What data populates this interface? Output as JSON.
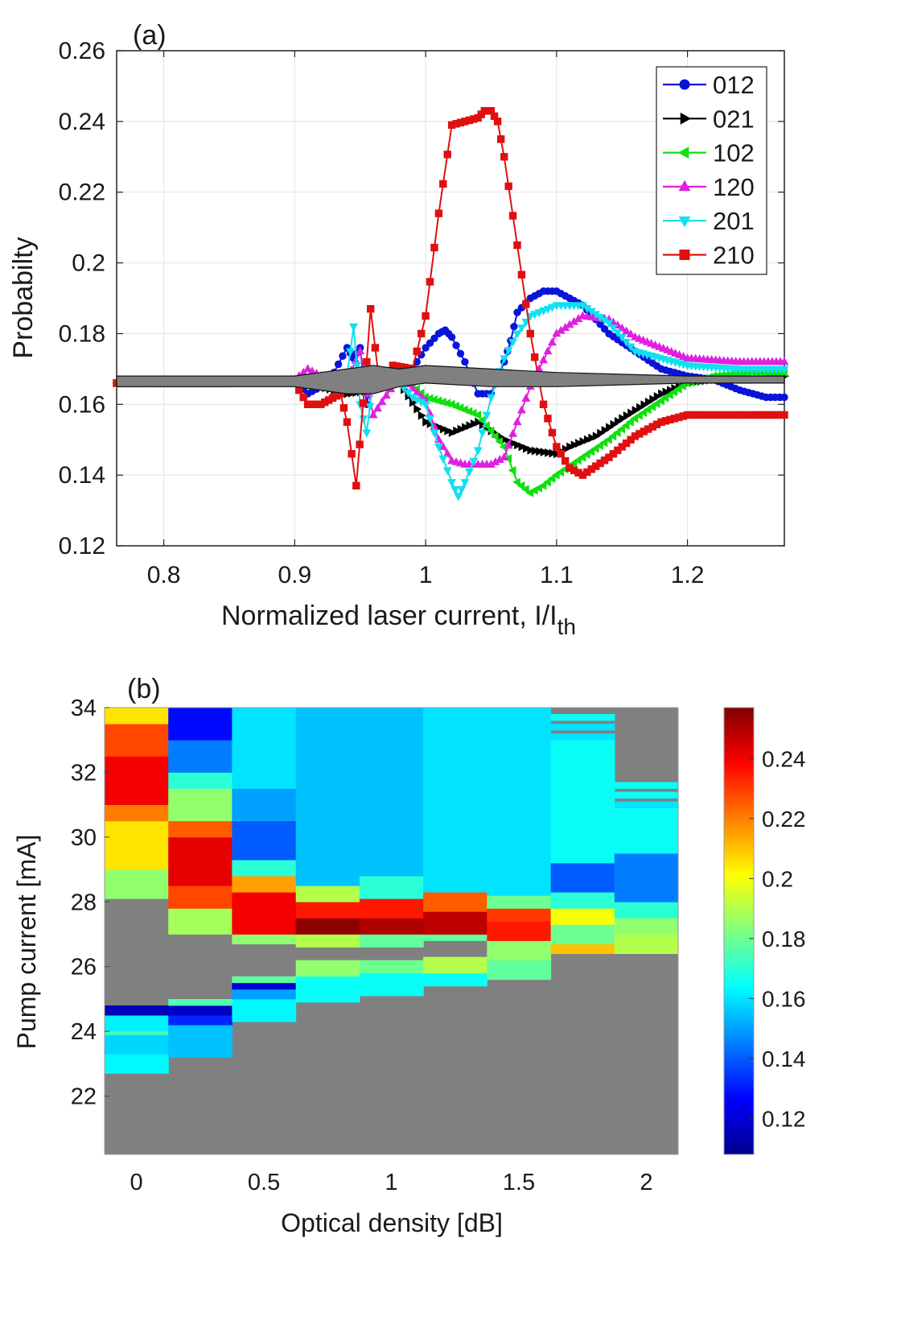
{
  "chart_data": [
    {
      "panel_label": "(a)",
      "type": "line",
      "xlabel": "Normalized laser current, I/I",
      "xlabel_sub": "th",
      "ylabel": "Probabilty",
      "xlim": [
        0.764,
        1.274
      ],
      "ylim": [
        0.12,
        0.26
      ],
      "xticks": [
        "0.8",
        "0.9",
        "1",
        "1.1",
        "1.2"
      ],
      "yticks": [
        "0.12",
        "0.14",
        "0.16",
        "0.18",
        "0.2",
        "0.22",
        "0.24",
        "0.26"
      ],
      "grid": true,
      "legend_position": "top-right",
      "series": [
        {
          "name": "012",
          "color": "#0a14d8",
          "marker": "circle",
          "x": [
            0.764,
            0.8,
            0.85,
            0.9,
            0.91,
            0.92,
            0.93,
            0.94,
            0.945,
            0.95,
            0.955,
            0.96,
            0.97,
            0.98,
            0.99,
            1.0,
            1.01,
            1.015,
            1.02,
            1.03,
            1.04,
            1.05,
            1.06,
            1.065,
            1.07,
            1.08,
            1.09,
            1.1,
            1.12,
            1.14,
            1.16,
            1.18,
            1.2,
            1.22,
            1.24,
            1.26,
            1.274
          ],
          "values": [
            0.166,
            0.166,
            0.166,
            0.167,
            0.163,
            0.165,
            0.169,
            0.176,
            0.173,
            0.176,
            0.16,
            0.17,
            0.168,
            0.169,
            0.17,
            0.176,
            0.18,
            0.181,
            0.179,
            0.172,
            0.163,
            0.163,
            0.172,
            0.178,
            0.186,
            0.19,
            0.192,
            0.192,
            0.188,
            0.18,
            0.175,
            0.17,
            0.168,
            0.167,
            0.164,
            0.162,
            0.162
          ]
        },
        {
          "name": "021",
          "color": "#000000",
          "marker": "triangle-right",
          "x": [
            0.764,
            0.8,
            0.85,
            0.9,
            0.92,
            0.94,
            0.96,
            0.98,
            1.0,
            1.02,
            1.04,
            1.06,
            1.08,
            1.1,
            1.11,
            1.13,
            1.15,
            1.18,
            1.2,
            1.22,
            1.25,
            1.274
          ],
          "values": [
            0.166,
            0.166,
            0.166,
            0.167,
            0.165,
            0.163,
            0.164,
            0.166,
            0.155,
            0.152,
            0.155,
            0.15,
            0.147,
            0.146,
            0.148,
            0.151,
            0.156,
            0.163,
            0.166,
            0.167,
            0.167,
            0.168
          ]
        },
        {
          "name": "102",
          "color": "#10e010",
          "marker": "triangle-left",
          "x": [
            0.764,
            0.8,
            0.85,
            0.9,
            0.92,
            0.94,
            0.96,
            0.98,
            1.0,
            1.02,
            1.04,
            1.06,
            1.07,
            1.08,
            1.09,
            1.1,
            1.12,
            1.14,
            1.16,
            1.18,
            1.2,
            1.22,
            1.25,
            1.274
          ],
          "values": [
            0.166,
            0.166,
            0.166,
            0.167,
            0.168,
            0.168,
            0.166,
            0.169,
            0.162,
            0.16,
            0.157,
            0.148,
            0.138,
            0.135,
            0.137,
            0.14,
            0.145,
            0.15,
            0.156,
            0.161,
            0.166,
            0.168,
            0.169,
            0.169
          ]
        },
        {
          "name": "120",
          "color": "#e020e0",
          "marker": "triangle-up",
          "x": [
            0.764,
            0.8,
            0.85,
            0.9,
            0.91,
            0.92,
            0.94,
            0.95,
            0.96,
            0.98,
            1.0,
            1.01,
            1.02,
            1.03,
            1.05,
            1.06,
            1.08,
            1.1,
            1.12,
            1.14,
            1.16,
            1.2,
            1.24,
            1.274
          ],
          "values": [
            0.166,
            0.166,
            0.166,
            0.167,
            0.17,
            0.168,
            0.167,
            0.175,
            0.157,
            0.168,
            0.161,
            0.15,
            0.144,
            0.143,
            0.143,
            0.145,
            0.165,
            0.18,
            0.185,
            0.184,
            0.179,
            0.173,
            0.172,
            0.172
          ]
        },
        {
          "name": "201",
          "color": "#10e0f0",
          "marker": "triangle-down",
          "x": [
            0.764,
            0.8,
            0.85,
            0.9,
            0.92,
            0.94,
            0.945,
            0.95,
            0.955,
            0.96,
            0.98,
            0.99,
            1.0,
            1.01,
            1.02,
            1.025,
            1.03,
            1.04,
            1.05,
            1.06,
            1.07,
            1.08,
            1.1,
            1.12,
            1.14,
            1.16,
            1.2,
            1.24,
            1.274
          ],
          "values": [
            0.166,
            0.166,
            0.166,
            0.167,
            0.168,
            0.168,
            0.182,
            0.16,
            0.152,
            0.167,
            0.166,
            0.162,
            0.16,
            0.148,
            0.138,
            0.134,
            0.138,
            0.147,
            0.162,
            0.173,
            0.18,
            0.185,
            0.188,
            0.188,
            0.183,
            0.175,
            0.171,
            0.17,
            0.17
          ]
        },
        {
          "name": "210",
          "color": "#e01010",
          "marker": "square",
          "x": [
            0.764,
            0.8,
            0.85,
            0.9,
            0.91,
            0.92,
            0.935,
            0.94,
            0.947,
            0.955,
            0.958,
            0.965,
            0.975,
            0.99,
            1.0,
            1.01,
            1.02,
            1.03,
            1.04,
            1.045,
            1.05,
            1.055,
            1.06,
            1.07,
            1.08,
            1.09,
            1.1,
            1.11,
            1.12,
            1.14,
            1.16,
            1.18,
            1.2,
            1.22,
            1.25,
            1.274
          ],
          "values": [
            0.166,
            0.166,
            0.166,
            0.166,
            0.16,
            0.16,
            0.163,
            0.155,
            0.137,
            0.172,
            0.187,
            0.165,
            0.171,
            0.17,
            0.185,
            0.214,
            0.239,
            0.24,
            0.241,
            0.243,
            0.243,
            0.24,
            0.23,
            0.205,
            0.18,
            0.16,
            0.148,
            0.142,
            0.14,
            0.145,
            0.151,
            0.155,
            0.157,
            0.157,
            0.157,
            0.157
          ]
        }
      ],
      "shaded_band": {
        "color": "#808080",
        "x": [
          0.764,
          0.9,
          0.92,
          0.94,
          0.96,
          0.98,
          1.0,
          1.05,
          1.1,
          1.2,
          1.274
        ],
        "upper": [
          0.168,
          0.168,
          0.169,
          0.17,
          0.171,
          0.17,
          0.171,
          0.17,
          0.169,
          0.168,
          0.168
        ],
        "lower": [
          0.165,
          0.165,
          0.164,
          0.163,
          0.163,
          0.165,
          0.166,
          0.165,
          0.165,
          0.166,
          0.166
        ]
      }
    },
    {
      "panel_label": "(b)",
      "type": "heatmap",
      "xlabel": "Optical density [dB]",
      "ylabel": "Pump current [mA]",
      "xlim": [
        -0.125,
        2.125
      ],
      "ylim": [
        20.2,
        34.0
      ],
      "xticks": [
        "0",
        "0.5",
        "1",
        "1.5",
        "2"
      ],
      "yticks": [
        "22",
        "24",
        "26",
        "28",
        "30",
        "32",
        "34"
      ],
      "columns_od": [
        0,
        0.25,
        0.5,
        0.75,
        1.0,
        1.25,
        1.5,
        1.75,
        2.0
      ],
      "colormap": "jet",
      "background_color": "#808080",
      "colorbar": {
        "min": 0.108,
        "max": 0.257,
        "ticks": [
          "0.12",
          "0.14",
          "0.16",
          "0.18",
          "0.2",
          "0.22",
          "0.24"
        ]
      },
      "column_segments": [
        [
          [
            22.7,
            23.3,
            0.163
          ],
          [
            23.3,
            23.9,
            0.158
          ],
          [
            23.9,
            24.0,
            0.175
          ],
          [
            24.0,
            24.5,
            0.162
          ],
          [
            24.5,
            24.8,
            0.116
          ],
          [
            28.1,
            29.0,
            0.185
          ],
          [
            29.0,
            30.5,
            0.205
          ],
          [
            30.5,
            31.0,
            0.22
          ],
          [
            31.0,
            32.5,
            0.24
          ],
          [
            32.5,
            33.5,
            0.228
          ],
          [
            33.5,
            34.0,
            0.205
          ]
        ],
        [
          [
            23.2,
            24.2,
            0.155
          ],
          [
            24.2,
            24.5,
            0.132
          ],
          [
            24.5,
            24.8,
            0.118
          ],
          [
            24.8,
            25.0,
            0.175
          ],
          [
            27.0,
            27.8,
            0.188
          ],
          [
            27.8,
            28.5,
            0.228
          ],
          [
            28.5,
            30.0,
            0.242
          ],
          [
            30.0,
            30.5,
            0.225
          ],
          [
            30.5,
            31.5,
            0.185
          ],
          [
            31.5,
            32.0,
            0.17
          ],
          [
            32.0,
            33.0,
            0.145
          ],
          [
            33.0,
            34.0,
            0.128
          ]
        ],
        [
          [
            24.3,
            25.0,
            0.163
          ],
          [
            25.0,
            25.3,
            0.15
          ],
          [
            25.3,
            25.5,
            0.12
          ],
          [
            25.5,
            25.7,
            0.178
          ],
          [
            26.7,
            27.0,
            0.185
          ],
          [
            27.0,
            28.3,
            0.24
          ],
          [
            28.3,
            28.8,
            0.215
          ],
          [
            28.8,
            29.3,
            0.17
          ],
          [
            29.3,
            30.5,
            0.14
          ],
          [
            30.5,
            31.5,
            0.15
          ],
          [
            31.5,
            34.0,
            0.16
          ]
        ],
        [
          [
            24.9,
            25.7,
            0.165
          ],
          [
            25.7,
            26.2,
            0.185
          ],
          [
            26.6,
            27.0,
            0.19
          ],
          [
            27.0,
            27.5,
            0.255
          ],
          [
            27.5,
            28.0,
            0.235
          ],
          [
            28.0,
            28.5,
            0.19
          ],
          [
            28.5,
            29.2,
            0.155
          ],
          [
            29.2,
            34.0,
            0.155
          ]
        ],
        [
          [
            25.1,
            25.8,
            0.165
          ],
          [
            25.8,
            26.2,
            0.18
          ],
          [
            26.6,
            27.0,
            0.178
          ],
          [
            27.0,
            27.5,
            0.25
          ],
          [
            27.5,
            28.1,
            0.235
          ],
          [
            28.1,
            28.8,
            0.17
          ],
          [
            28.8,
            34.0,
            0.155
          ]
        ],
        [
          [
            25.4,
            25.8,
            0.165
          ],
          [
            25.8,
            26.3,
            0.19
          ],
          [
            26.8,
            27.0,
            0.178
          ],
          [
            27.0,
            27.7,
            0.248
          ],
          [
            27.7,
            28.3,
            0.225
          ],
          [
            28.3,
            34.0,
            0.16
          ]
        ],
        [
          [
            25.6,
            26.2,
            0.178
          ],
          [
            26.2,
            26.8,
            0.185
          ],
          [
            26.8,
            27.4,
            0.235
          ],
          [
            27.4,
            27.8,
            0.23
          ],
          [
            27.8,
            28.2,
            0.18
          ],
          [
            28.2,
            34.0,
            0.16
          ]
        ],
        [
          [
            26.4,
            26.7,
            0.21
          ],
          [
            26.7,
            27.3,
            0.18
          ],
          [
            27.3,
            27.8,
            0.2
          ],
          [
            27.8,
            28.3,
            0.17
          ],
          [
            28.3,
            29.2,
            0.14
          ],
          [
            29.2,
            33.0,
            0.165
          ],
          [
            33.0,
            33.2,
            0.16
          ],
          [
            33.3,
            33.5,
            0.16
          ],
          [
            33.6,
            33.8,
            0.165
          ]
        ],
        [
          [
            26.4,
            27.0,
            0.19
          ],
          [
            27.0,
            27.5,
            0.185
          ],
          [
            27.5,
            28.0,
            0.17
          ],
          [
            28.0,
            29.5,
            0.145
          ],
          [
            29.5,
            30.9,
            0.165
          ],
          [
            30.9,
            31.1,
            0.16
          ],
          [
            31.2,
            31.4,
            0.165
          ],
          [
            31.5,
            31.7,
            0.165
          ]
        ]
      ]
    }
  ]
}
